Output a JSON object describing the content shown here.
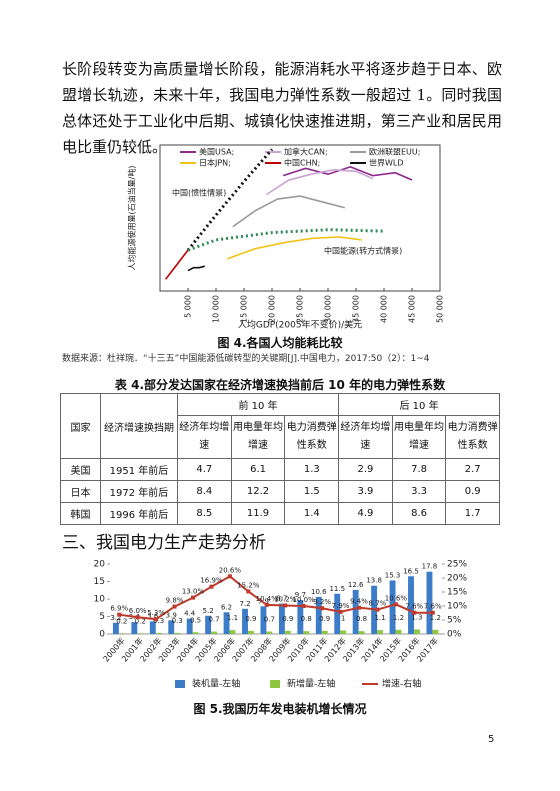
{
  "paragraph": "长阶段转变为高质量增长阶段，能源消耗水平将逐步趋于日本、欧盟增长轨迹，未来十年，我国电力弹性系数一般超过 1。同时我国总体还处于工业化中后期、城镇化快速推进期，第三产业和居民用电比重仍较低。",
  "figure4_caption": "图 4.各国人均能耗比较",
  "source": "数据来源：杜祥琬．“十三五”中国能源低碳转型的关键期[J].中国电力，2017:50（2）：1~4",
  "table": {
    "caption": "表 4.部分发达国家在经济增速换挡前后 10 年的电力弹性系数",
    "header_row1": [
      "国家",
      "经济增速换挡期",
      "前 10 年",
      "后 10 年"
    ],
    "header_row2": [
      "经济年均增速",
      "用电量年均增速",
      "电力消费弹性系数",
      "经济年均增速",
      "用电量年均增速",
      "电力消费弹性系数"
    ],
    "rows": [
      [
        "美国",
        "1951 年前后",
        4.7,
        6.1,
        1.3,
        2.9,
        7.8,
        2.7
      ],
      [
        "日本",
        "1972 年前后",
        8.4,
        12.2,
        1.5,
        3.9,
        3.3,
        0.9
      ],
      [
        "韩国",
        "1996 年前后",
        8.5,
        11.9,
        1.4,
        4.9,
        8.6,
        1.7
      ]
    ]
  },
  "section_heading": "三、我国电力生产走势分析",
  "figure5_caption": "图 5.我国历年发电装机增长情况",
  "page_number": "5",
  "chart_data": [
    {
      "type": "line",
      "xlabel": "人均GDP(2005年不变价)/美元",
      "ylabel": "人均能源使用量(石油当量/吨)",
      "xlim": [
        0,
        50000
      ],
      "ylim": [
        0,
        10
      ],
      "xticks": [
        {
          "value": 5000,
          "label": "5 000"
        },
        {
          "value": 10000,
          "label": "10 000"
        },
        {
          "value": 15000,
          "label": "15 000"
        },
        {
          "value": 20000,
          "label": "20 000"
        },
        {
          "value": 25000,
          "label": "25 000"
        },
        {
          "value": 30000,
          "label": "30 000"
        },
        {
          "value": 35000,
          "label": "35 000"
        },
        {
          "value": 40000,
          "label": "40 000"
        },
        {
          "value": 45000,
          "label": "45 000"
        },
        {
          "value": 50000,
          "label": "50 000"
        }
      ],
      "series": [
        {
          "name": "美国USA;",
          "color": "#8b2a8b",
          "x": [
            22000,
            26000,
            30000,
            34000,
            38000,
            42000,
            45000
          ],
          "values": [
            7.9,
            8.4,
            8.0,
            8.5,
            7.9,
            8.1,
            7.6
          ]
        },
        {
          "name": "加拿大CAN;",
          "color": "#c9a3d3",
          "x": [
            19000,
            23000,
            27000,
            31000,
            35000,
            38000
          ],
          "values": [
            6.6,
            7.6,
            8.0,
            8.3,
            8.2,
            7.7
          ]
        },
        {
          "name": "欧洲联盟EUU;",
          "color": "#9a9a9a",
          "x": [
            13000,
            17000,
            21000,
            25000,
            29000,
            33000
          ],
          "values": [
            4.4,
            5.5,
            6.3,
            6.5,
            6.1,
            5.7
          ]
        },
        {
          "name": "日本JPN;",
          "color": "#f2c21a",
          "x": [
            12000,
            17000,
            22000,
            27000,
            32000,
            36000
          ],
          "values": [
            2.2,
            2.9,
            3.3,
            3.6,
            3.7,
            3.5
          ]
        },
        {
          "name": "中国CHN;",
          "color": "#c00000",
          "x": [
            1000,
            2000,
            3000,
            4000,
            5000
          ],
          "values": [
            0.8,
            1.3,
            1.8,
            2.3,
            2.8
          ]
        },
        {
          "name": "世界WLD",
          "color": "#111111",
          "x": [
            5000,
            6000,
            7000,
            8000
          ],
          "values": [
            1.4,
            1.6,
            1.6,
            1.7
          ]
        }
      ],
      "projections": [
        {
          "name": "中国(惯性情景)",
          "color": "#111111",
          "x": [
            5000,
            10000,
            15000,
            20000
          ],
          "values": [
            2.8,
            5.2,
            7.5,
            9.7
          ]
        },
        {
          "name": "中国能源(转方式情景)",
          "color": "#2e8b57",
          "x": [
            5000,
            10000,
            20000,
            30000,
            40000
          ],
          "values": [
            2.8,
            3.5,
            4.0,
            4.2,
            4.1
          ]
        }
      ]
    },
    {
      "type": "bar-line",
      "categories": [
        "2000年",
        "2001年",
        "2002年",
        "2003年",
        "2004年",
        "2005年",
        "2006年",
        "2007年",
        "2008年",
        "2009年",
        "2010年",
        "2011年",
        "2012年",
        "2013年",
        "2014年",
        "2015年",
        "2016年",
        "2017年"
      ],
      "ylim": [
        0,
        20
      ],
      "yticks": [
        0,
        5,
        10,
        15,
        20
      ],
      "y2lim": [
        0,
        25
      ],
      "y2ticks": [
        {
          "value": 0,
          "label": "0%"
        },
        {
          "value": 5,
          "label": "5%"
        },
        {
          "value": 10,
          "label": "10%"
        },
        {
          "value": 15,
          "label": "15%"
        },
        {
          "value": 20,
          "label": "20%"
        },
        {
          "value": 25,
          "label": "25%"
        }
      ],
      "series": [
        {
          "name": "装机量-左轴",
          "color": "#3d7cc9",
          "values": [
            3.2,
            3.4,
            3.6,
            3.9,
            4.4,
            5.2,
            6.2,
            7.2,
            7.9,
            8.7,
            9.7,
            10.6,
            11.5,
            12.6,
            13.8,
            15.3,
            16.5,
            17.8
          ]
        },
        {
          "name": "新增量-左轴",
          "color": "#8dc63f",
          "values": [
            0.2,
            0.2,
            0.3,
            0.3,
            0.5,
            0.7,
            1.1,
            0.9,
            0.7,
            0.9,
            0.8,
            0.9,
            1.0,
            0.8,
            1.1,
            1.2,
            1.3,
            1.2
          ]
        },
        {
          "name": "增速-右轴",
          "color": "#c0392b",
          "axis": "y2",
          "values": [
            6.9,
            6.0,
            5.3,
            9.8,
            13.0,
            16.9,
            20.6,
            15.2,
            10.4,
            10.2,
            10.0,
            9.2,
            7.9,
            9.4,
            8.7,
            10.6,
            7.6,
            7.6
          ],
          "value_labels": [
            "6.9%",
            "6.0%",
            "5.3%",
            "9.8%",
            "13.0%",
            "16.9%",
            "20.6%",
            "15.2%",
            "10.4%",
            "10.2%",
            "10.0%",
            "9.2%",
            "7.9%",
            "9.4%",
            "8.7%",
            "10.6%",
            "7.6%",
            "7.6%"
          ]
        }
      ]
    }
  ]
}
